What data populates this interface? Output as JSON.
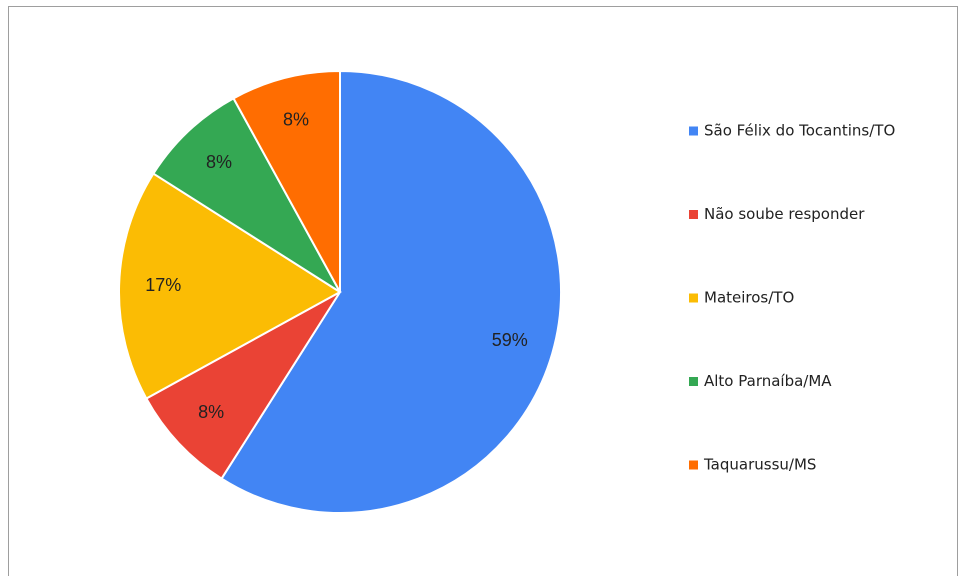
{
  "chart_data": {
    "type": "pie",
    "categories": [
      "São Félix do Tocantins/TO",
      "Não soube responder",
      "Mateiros/TO",
      "Alto Parnaíba/MA",
      "Taquarussu/MS"
    ],
    "values": [
      59,
      8,
      17,
      8,
      8
    ],
    "value_labels": [
      "59%",
      "8%",
      "17%",
      "8%",
      "8%"
    ],
    "colors": [
      "#4285f4",
      "#ea4335",
      "#fbbc04",
      "#34a853",
      "#ff6d01"
    ],
    "legend": "right"
  }
}
